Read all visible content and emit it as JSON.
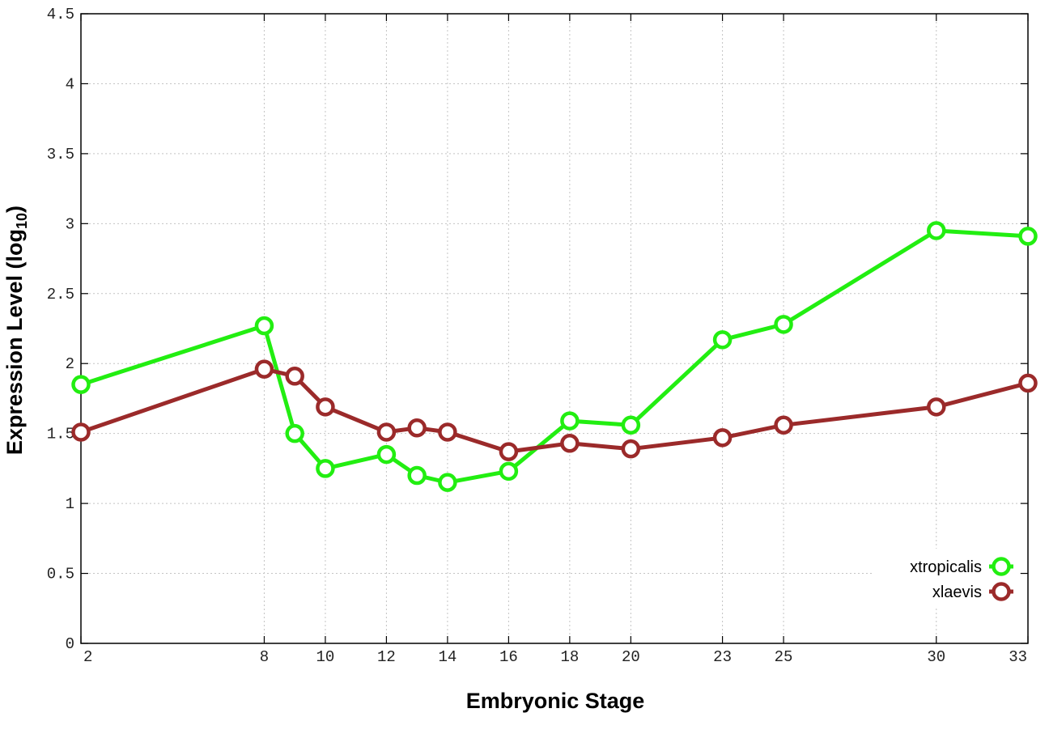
{
  "chart_data": {
    "type": "line",
    "xlabel": "Embryonic Stage",
    "ylabel_main": "Expression Level (log",
    "ylabel_sub": "10",
    "ylabel_close": ")",
    "x": [
      2,
      8,
      9,
      10,
      12,
      13,
      14,
      16,
      18,
      20,
      23,
      25,
      30,
      33
    ],
    "x_ticks": [
      2,
      8,
      10,
      12,
      14,
      16,
      18,
      20,
      23,
      25,
      30,
      33
    ],
    "y_ticks": [
      "0",
      "0.5",
      "1",
      "1.5",
      "2",
      "2.5",
      "3",
      "3.5",
      "4",
      "4.5"
    ],
    "xlim": [
      2,
      33
    ],
    "ylim": [
      0,
      4.5
    ],
    "grid": true,
    "legend_position": "bottom-right",
    "series": [
      {
        "name": "xtropicalis",
        "color": "#22ee11",
        "values": [
          1.85,
          2.27,
          1.5,
          1.25,
          1.35,
          1.2,
          1.15,
          1.23,
          1.59,
          1.56,
          2.17,
          2.28,
          2.95,
          2.91
        ]
      },
      {
        "name": "xlaevis",
        "color": "#9b2a2a",
        "values": [
          1.51,
          1.96,
          1.91,
          1.69,
          1.51,
          1.54,
          1.51,
          1.37,
          1.43,
          1.39,
          1.47,
          1.56,
          1.69,
          1.86
        ]
      }
    ]
  }
}
